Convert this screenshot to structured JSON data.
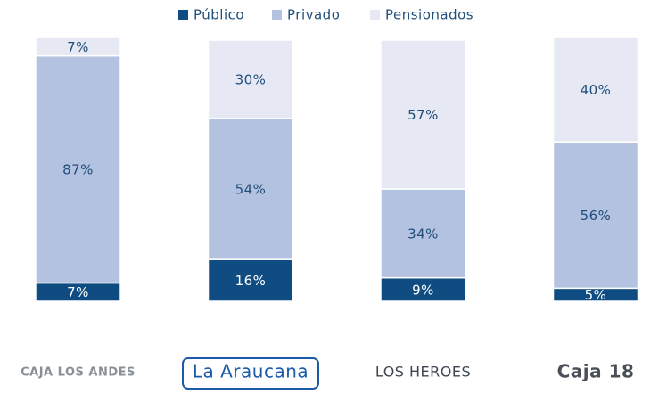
{
  "chart_data": {
    "type": "stacked_bar",
    "categories": [
      "CAJA LOS ANDES",
      "La Araucana",
      "LOS HEROES",
      "Caja 18"
    ],
    "series": [
      {
        "name": "Público",
        "color": "#0f4c81",
        "values": [
          7,
          16,
          9,
          5
        ],
        "value_labels": [
          "7%",
          "16%",
          "9%",
          "5%"
        ]
      },
      {
        "name": "Privado",
        "color": "#b4c2e1",
        "values": [
          87,
          54,
          34,
          56
        ],
        "value_labels": [
          "87%",
          "54%",
          "34%",
          "56%"
        ]
      },
      {
        "name": "Pensionados",
        "color": "#e6e9f4",
        "values": [
          7,
          30,
          57,
          40
        ],
        "value_labels": [
          "7%",
          "30%",
          "57%",
          "40%"
        ]
      }
    ],
    "legend": "top"
  }
}
